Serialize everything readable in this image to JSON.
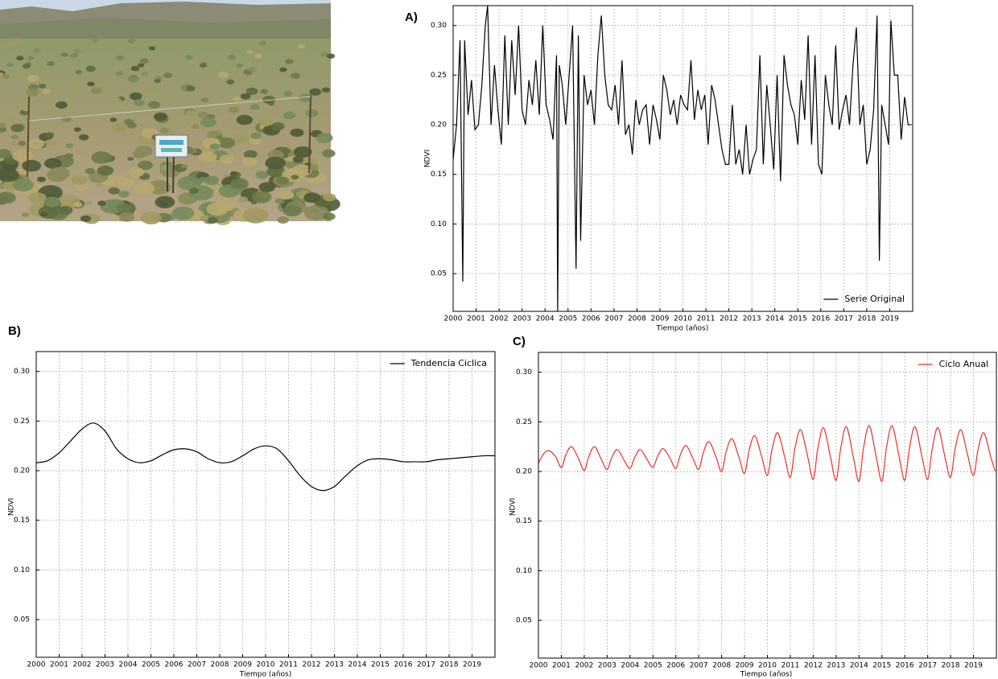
{
  "chart_data": [
    {
      "type": "line",
      "panel_label": "A)",
      "ylabel": "NDVI",
      "xlabel": "Tiempo (años)",
      "grid": true,
      "legend": "lower right",
      "xlim": [
        2000,
        2020
      ],
      "ylim": [
        0.012,
        0.32
      ],
      "xticks": [
        2000,
        2001,
        2002,
        2003,
        2004,
        2005,
        2006,
        2007,
        2008,
        2009,
        2010,
        2011,
        2012,
        2013,
        2014,
        2015,
        2016,
        2017,
        2018,
        2019
      ],
      "yticks": [
        0.05,
        {
          "value": 0.1,
          "label": "0.10"
        },
        0.15,
        {
          "value": 0.2,
          "label": "0.20"
        },
        0.25,
        {
          "value": 0.3,
          "label": "0.30"
        }
      ],
      "x": [
        2000.0,
        2000.15,
        2000.3,
        2000.42,
        2000.5,
        2000.65,
        2000.8,
        2000.95,
        2001.1,
        2001.25,
        2001.4,
        2001.5,
        2001.65,
        2001.8,
        2001.95,
        2002.1,
        2002.25,
        2002.4,
        2002.55,
        2002.7,
        2002.85,
        2003.0,
        2003.15,
        2003.3,
        2003.45,
        2003.6,
        2003.75,
        2003.9,
        2004.05,
        2004.2,
        2004.35,
        2004.5,
        2004.55,
        2004.62,
        2004.75,
        2004.9,
        2005.05,
        2005.2,
        2005.35,
        2005.45,
        2005.55,
        2005.7,
        2005.85,
        2006.0,
        2006.15,
        2006.3,
        2006.45,
        2006.6,
        2006.75,
        2006.9,
        2007.05,
        2007.2,
        2007.35,
        2007.5,
        2007.65,
        2007.8,
        2007.95,
        2008.1,
        2008.25,
        2008.4,
        2008.55,
        2008.7,
        2008.85,
        2009.0,
        2009.15,
        2009.3,
        2009.45,
        2009.6,
        2009.75,
        2009.9,
        2010.05,
        2010.2,
        2010.35,
        2010.5,
        2010.65,
        2010.8,
        2010.95,
        2011.1,
        2011.25,
        2011.4,
        2011.55,
        2011.7,
        2011.85,
        2012.0,
        2012.15,
        2012.3,
        2012.45,
        2012.6,
        2012.75,
        2012.9,
        2013.05,
        2013.2,
        2013.35,
        2013.5,
        2013.65,
        2013.8,
        2013.95,
        2014.1,
        2014.25,
        2014.4,
        2014.55,
        2014.7,
        2014.85,
        2015.0,
        2015.15,
        2015.3,
        2015.45,
        2015.6,
        2015.75,
        2015.9,
        2016.05,
        2016.2,
        2016.35,
        2016.5,
        2016.65,
        2016.8,
        2016.95,
        2017.1,
        2017.25,
        2017.4,
        2017.55,
        2017.7,
        2017.85,
        2018.0,
        2018.15,
        2018.3,
        2018.45,
        2018.55,
        2018.65,
        2018.8,
        2018.95,
        2019.05,
        2019.2,
        2019.35,
        2019.5,
        2019.65,
        2019.8,
        2019.95
      ],
      "series": [
        {
          "name": "Serie Original",
          "color": "#000000",
          "values": [
            0.165,
            0.2,
            0.285,
            0.042,
            0.285,
            0.21,
            0.245,
            0.195,
            0.2,
            0.24,
            0.3,
            0.32,
            0.2,
            0.26,
            0.215,
            0.18,
            0.29,
            0.2,
            0.285,
            0.23,
            0.3,
            0.215,
            0.2,
            0.245,
            0.22,
            0.265,
            0.21,
            0.3,
            0.22,
            0.205,
            0.185,
            0.27,
            0.012,
            0.26,
            0.24,
            0.2,
            0.25,
            0.3,
            0.055,
            0.29,
            0.083,
            0.25,
            0.22,
            0.235,
            0.2,
            0.27,
            0.31,
            0.25,
            0.22,
            0.215,
            0.24,
            0.2,
            0.265,
            0.19,
            0.2,
            0.17,
            0.225,
            0.2,
            0.215,
            0.22,
            0.18,
            0.22,
            0.205,
            0.185,
            0.25,
            0.235,
            0.21,
            0.225,
            0.2,
            0.23,
            0.22,
            0.215,
            0.265,
            0.205,
            0.235,
            0.215,
            0.23,
            0.18,
            0.24,
            0.225,
            0.2,
            0.175,
            0.16,
            0.16,
            0.22,
            0.16,
            0.175,
            0.15,
            0.2,
            0.15,
            0.165,
            0.175,
            0.27,
            0.16,
            0.24,
            0.2,
            0.155,
            0.25,
            0.143,
            0.27,
            0.24,
            0.22,
            0.21,
            0.18,
            0.245,
            0.205,
            0.29,
            0.18,
            0.27,
            0.16,
            0.15,
            0.25,
            0.22,
            0.2,
            0.28,
            0.195,
            0.215,
            0.23,
            0.2,
            0.26,
            0.298,
            0.2,
            0.22,
            0.16,
            0.175,
            0.215,
            0.31,
            0.063,
            0.22,
            0.2,
            0.18,
            0.305,
            0.25,
            0.25,
            0.185,
            0.228,
            0.2,
            0.2
          ]
        }
      ]
    },
    {
      "type": "line",
      "panel_label": "B)",
      "ylabel": "NDVI",
      "xlabel": "Tiempo (años)",
      "grid": true,
      "legend": "upper right",
      "xlim": [
        2000,
        2020
      ],
      "ylim": [
        0.012,
        0.32
      ],
      "xticks": [
        2000,
        2001,
        2002,
        2003,
        2004,
        2005,
        2006,
        2007,
        2008,
        2009,
        2010,
        2011,
        2012,
        2013,
        2014,
        2015,
        2016,
        2017,
        2018,
        2019
      ],
      "yticks": [
        0.05,
        {
          "value": 0.1,
          "label": "0.10"
        },
        0.15,
        {
          "value": 0.2,
          "label": "0.20"
        },
        0.25,
        {
          "value": 0.3,
          "label": "0.30"
        }
      ],
      "x": [
        2000,
        2000.5,
        2001,
        2001.5,
        2002,
        2002.5,
        2003,
        2003.5,
        2004,
        2004.5,
        2005,
        2005.5,
        2006,
        2006.5,
        2007,
        2007.5,
        2008,
        2008.5,
        2009,
        2009.5,
        2010,
        2010.5,
        2011,
        2011.5,
        2012,
        2012.5,
        2013,
        2013.5,
        2014,
        2014.5,
        2015,
        2015.5,
        2016,
        2016.5,
        2017,
        2017.5,
        2018,
        2018.5,
        2019,
        2019.5,
        2020
      ],
      "series": [
        {
          "name": "Tendencia Ciclica",
          "color": "#000000",
          "values": [
            0.208,
            0.21,
            0.218,
            0.23,
            0.242,
            0.248,
            0.24,
            0.222,
            0.212,
            0.208,
            0.21,
            0.216,
            0.221,
            0.222,
            0.219,
            0.212,
            0.208,
            0.209,
            0.215,
            0.222,
            0.225,
            0.222,
            0.21,
            0.195,
            0.184,
            0.18,
            0.184,
            0.195,
            0.205,
            0.211,
            0.212,
            0.211,
            0.209,
            0.209,
            0.209,
            0.211,
            0.212,
            0.213,
            0.214,
            0.215,
            0.215
          ]
        }
      ]
    },
    {
      "type": "line",
      "panel_label": "C)",
      "ylabel": "NDVI",
      "xlabel": "Tiempo (años)",
      "grid": true,
      "legend": "upper right",
      "xlim": [
        2000,
        2020
      ],
      "ylim": [
        0.012,
        0.32
      ],
      "xticks": [
        2000,
        2001,
        2002,
        2003,
        2004,
        2005,
        2006,
        2007,
        2008,
        2009,
        2010,
        2011,
        2012,
        2013,
        2014,
        2015,
        2016,
        2017,
        2018,
        2019
      ],
      "yticks": [
        0.05,
        {
          "value": 0.1,
          "label": "0.10"
        },
        0.15,
        {
          "value": 0.2,
          "label": "0.20"
        },
        0.25,
        {
          "value": 0.3,
          "label": "0.30"
        }
      ],
      "x": [
        2000,
        2000.2,
        2000.45,
        2000.75,
        2001,
        2001.2,
        2001.45,
        2001.75,
        2002,
        2002.2,
        2002.45,
        2002.75,
        2003,
        2003.2,
        2003.45,
        2003.75,
        2004,
        2004.2,
        2004.45,
        2004.75,
        2005,
        2005.2,
        2005.45,
        2005.75,
        2006,
        2006.2,
        2006.45,
        2006.75,
        2007,
        2007.2,
        2007.45,
        2007.75,
        2008,
        2008.2,
        2008.45,
        2008.75,
        2009,
        2009.2,
        2009.45,
        2009.75,
        2010,
        2010.2,
        2010.45,
        2010.75,
        2011,
        2011.2,
        2011.45,
        2011.75,
        2012,
        2012.2,
        2012.45,
        2012.75,
        2013,
        2013.2,
        2013.45,
        2013.75,
        2014,
        2014.2,
        2014.45,
        2014.75,
        2015,
        2015.2,
        2015.45,
        2015.75,
        2016,
        2016.2,
        2016.45,
        2016.75,
        2017,
        2017.2,
        2017.45,
        2017.75,
        2018,
        2018.2,
        2018.45,
        2018.75,
        2019,
        2019.2,
        2019.45,
        2019.75,
        2019.95
      ],
      "series": [
        {
          "name": "Ciclo Anual",
          "color": "#e8302a",
          "values": [
            0.208,
            0.217,
            0.221,
            0.215,
            0.204,
            0.217,
            0.225,
            0.213,
            0.201,
            0.215,
            0.225,
            0.212,
            0.202,
            0.214,
            0.222,
            0.211,
            0.203,
            0.214,
            0.222,
            0.212,
            0.204,
            0.215,
            0.223,
            0.213,
            0.203,
            0.217,
            0.226,
            0.213,
            0.202,
            0.219,
            0.23,
            0.215,
            0.2,
            0.22,
            0.233,
            0.215,
            0.198,
            0.221,
            0.236,
            0.215,
            0.196,
            0.222,
            0.239,
            0.215,
            0.194,
            0.223,
            0.242,
            0.216,
            0.192,
            0.223,
            0.244,
            0.215,
            0.191,
            0.223,
            0.245,
            0.215,
            0.19,
            0.224,
            0.246,
            0.215,
            0.19,
            0.224,
            0.246,
            0.215,
            0.191,
            0.223,
            0.245,
            0.215,
            0.192,
            0.223,
            0.244,
            0.215,
            0.194,
            0.223,
            0.242,
            0.216,
            0.196,
            0.222,
            0.239,
            0.215,
            0.2
          ]
        }
      ]
    }
  ]
}
